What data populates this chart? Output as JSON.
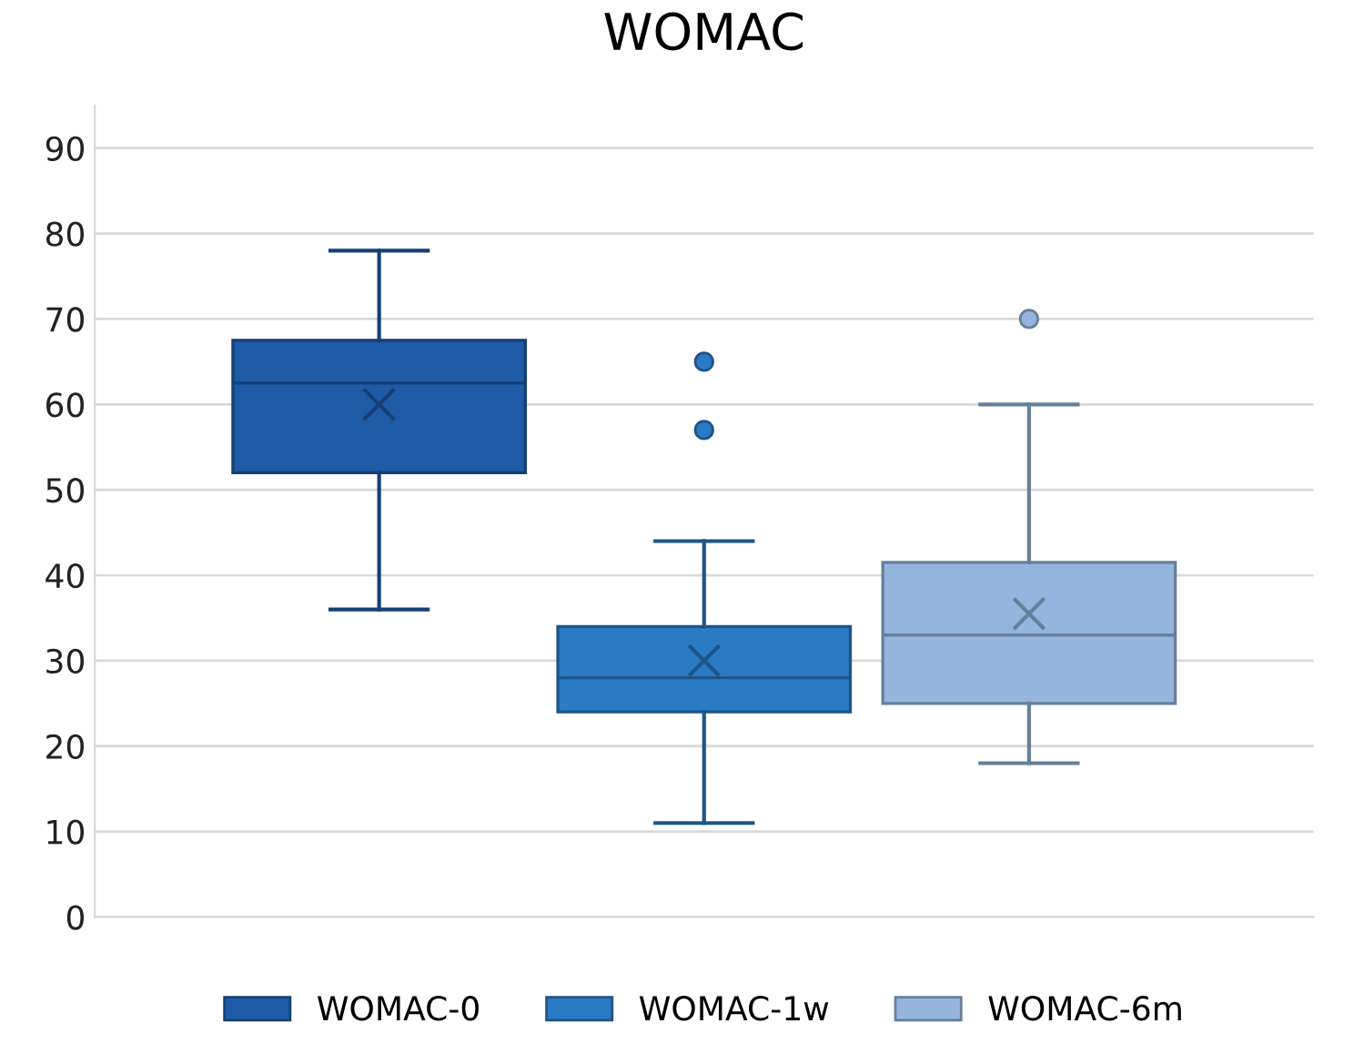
{
  "chart_data": {
    "type": "box",
    "title": "WOMAC",
    "categories": [
      null
    ],
    "ylim": [
      0,
      95
    ],
    "yticks": [
      0,
      10,
      20,
      30,
      40,
      50,
      60,
      70,
      80,
      90
    ],
    "grid": "y",
    "legend": "bottom",
    "series": [
      {
        "name": "WOMAC-0",
        "color": "#1f5aa6",
        "boxes": [
          {
            "low": 36,
            "q1": 52,
            "median": 62.5,
            "q3": 67.5,
            "high": 78,
            "mean": 60
          }
        ]
      },
      {
        "name": "WOMAC-1w",
        "color": "#2a7ac4",
        "boxes": [
          {
            "low": 11,
            "q1": 24,
            "median": 28,
            "q3": 34,
            "high": 44,
            "mean": 30,
            "outliers": [
              57,
              65
            ]
          }
        ]
      },
      {
        "name": "WOMAC-6m",
        "color": "#93b5de",
        "boxes": [
          {
            "low": 18,
            "q1": 25,
            "median": 33,
            "q3": 41.5,
            "high": 60,
            "mean": 35.5,
            "outliers": [
              70
            ]
          }
        ]
      }
    ]
  }
}
